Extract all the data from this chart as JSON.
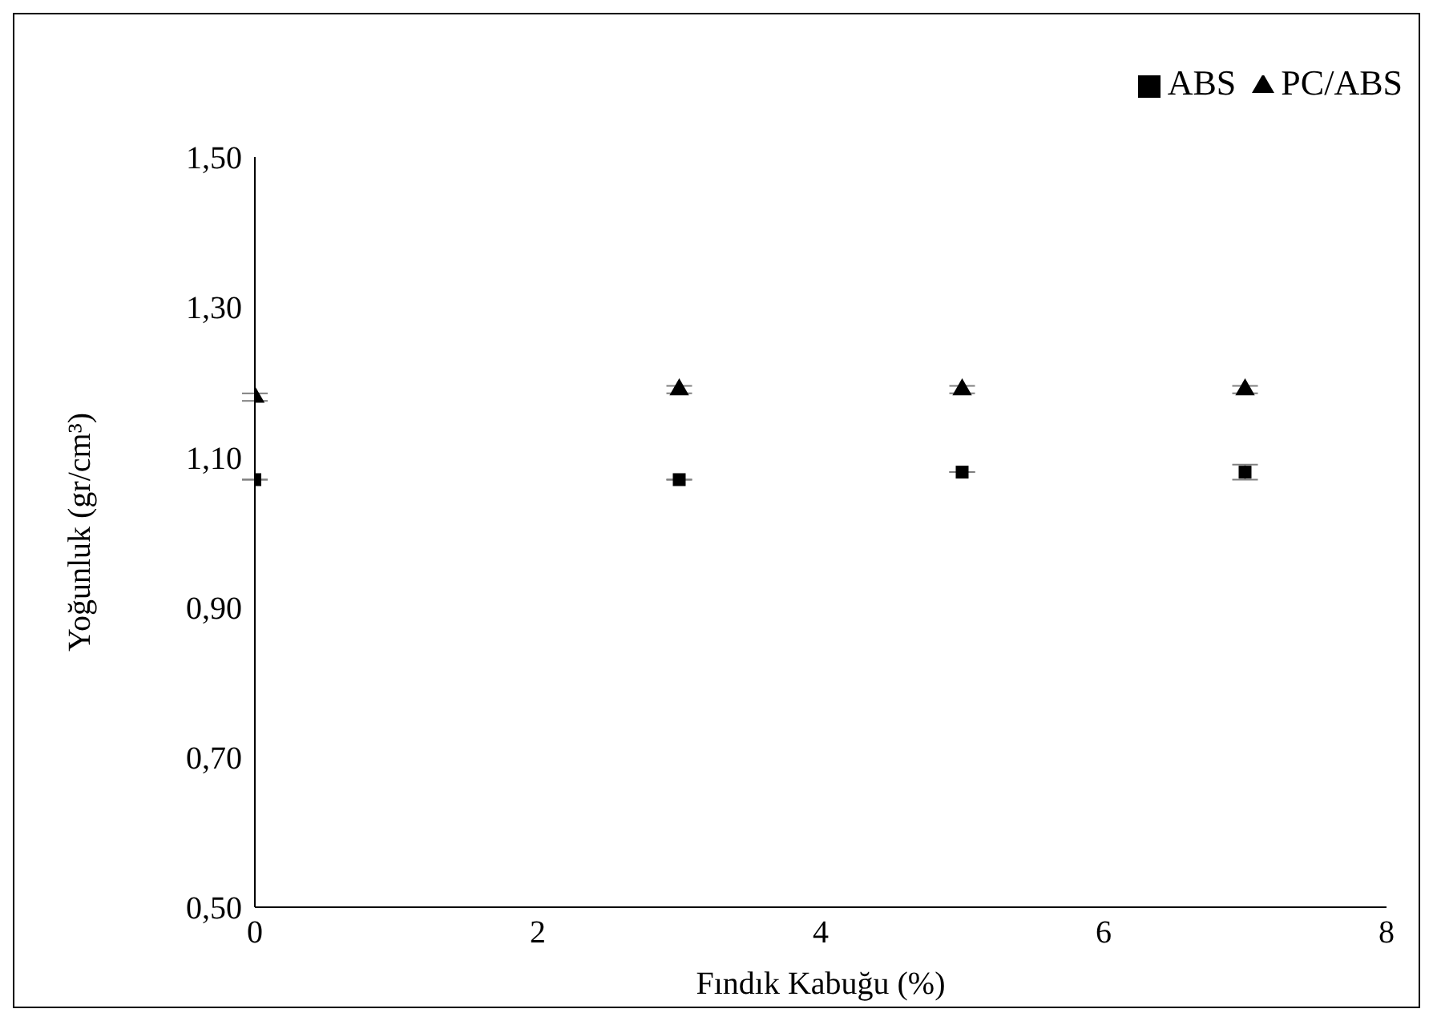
{
  "chart_data": {
    "type": "scatter",
    "xlabel": "Fındık Kabuğu (%)",
    "ylabel": "Yoğunluk (gr/cm³)",
    "xlim": [
      0,
      8
    ],
    "xticks": [
      0,
      2,
      4,
      6,
      8
    ],
    "ylim": [
      0.5,
      1.5
    ],
    "yticks": [
      {
        "value": 0.5,
        "label": "0,50"
      },
      {
        "value": 0.7,
        "label": "0,70"
      },
      {
        "value": 0.9,
        "label": "0,90"
      },
      {
        "value": 1.1,
        "label": "1,10"
      },
      {
        "value": 1.3,
        "label": "1,30"
      },
      {
        "value": 1.5,
        "label": "1,50"
      }
    ],
    "x": [
      0,
      3,
      5,
      7
    ],
    "series": [
      {
        "name": "ABS",
        "color": "#000000",
        "marker": "square",
        "values": [
          1.07,
          1.07,
          1.08,
          1.08
        ],
        "errors": [
          null,
          null,
          null,
          0.01
        ]
      },
      {
        "name": "PC/ABS",
        "color": "#000000",
        "marker": "triangle",
        "values": [
          1.18,
          1.19,
          1.19,
          1.19
        ],
        "errors": [
          0.005,
          0.005,
          0.005,
          0.005
        ]
      }
    ],
    "grid": false,
    "legend": "top right"
  }
}
